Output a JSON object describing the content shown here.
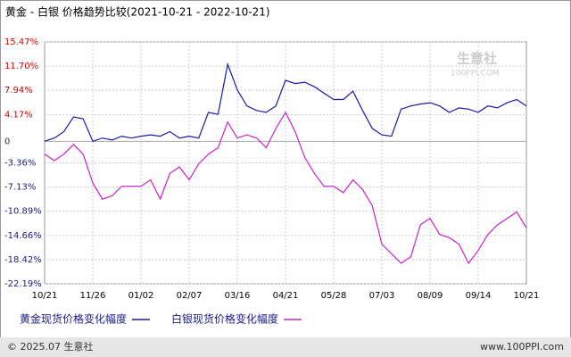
{
  "chart_data": {
    "type": "line",
    "title": "黄金 - 白银 价格趋势比较(2021-10-21 - 2022-10-21)",
    "watermark": [
      "生意社",
      "100PPI.COM"
    ],
    "footer_left": "© 2025.07 生意社",
    "footer_right": "www.100PPI.com",
    "categories": [
      "10/21",
      null,
      null,
      null,
      null,
      "11/26",
      null,
      null,
      null,
      null,
      "01/02",
      null,
      null,
      null,
      null,
      "02/07",
      null,
      null,
      null,
      null,
      "03/16",
      null,
      null,
      null,
      null,
      "04/21",
      null,
      null,
      null,
      null,
      "05/28",
      null,
      null,
      null,
      null,
      "07/03",
      null,
      null,
      null,
      null,
      "08/09",
      null,
      null,
      null,
      null,
      "09/14",
      null,
      null,
      null,
      null,
      "10/21"
    ],
    "series": [
      {
        "name": "黄金现货价格变化幅度",
        "color": "#1a1aa8",
        "values": [
          0,
          0.5,
          1.5,
          3.8,
          3.5,
          0,
          0.5,
          0.2,
          0.8,
          0.5,
          0.8,
          1,
          0.8,
          1.5,
          0.5,
          0.8,
          0.5,
          4.5,
          4.2,
          12,
          8,
          5.5,
          4.8,
          4.5,
          5.5,
          9.5,
          9,
          9.2,
          8.5,
          7.5,
          6.5,
          6.5,
          7.8,
          4.8,
          2,
          1,
          0.8,
          5,
          5.5,
          5.8,
          6,
          5.5,
          4.5,
          5.2,
          5,
          4.5,
          5.5,
          5.2,
          6,
          6.5,
          5.5
        ]
      },
      {
        "name": "白银现货价格变化幅度",
        "color": "#cc22cc",
        "values": [
          -2,
          -3,
          -2,
          -0.5,
          -2,
          -6.5,
          -9,
          -8.5,
          -7,
          -7,
          -7,
          -6,
          -9,
          -5,
          -4,
          -6,
          -3.5,
          -2,
          -1,
          3,
          0.5,
          1,
          0.5,
          -1,
          2,
          4.5,
          1.5,
          -2.5,
          -5,
          -7,
          -7,
          -8,
          -6,
          -7.5,
          -10,
          -16,
          -17.5,
          -19,
          -18,
          -13,
          -12,
          -14.5,
          -15,
          -16,
          -19,
          -17,
          -14.5,
          -13,
          -12,
          -11,
          -13.5
        ]
      }
    ],
    "ylim": [
      -22.19,
      15.47
    ],
    "yticks": [
      {
        "value": 15.47,
        "label": "15.47%"
      },
      {
        "value": 11.7,
        "label": "11.70%"
      },
      {
        "value": 7.94,
        "label": "7.94%"
      },
      {
        "value": 4.17,
        "label": "4.17%"
      },
      0,
      {
        "value": -3.36,
        "label": "-3.36%"
      },
      {
        "value": -7.13,
        "label": "-7.13%"
      },
      {
        "value": -10.89,
        "label": "-10.89%"
      },
      {
        "value": -14.66,
        "label": "-14.66%"
      },
      {
        "value": -18.42,
        "label": "-18.42%"
      },
      {
        "value": -22.19,
        "label": "-22.19%"
      }
    ],
    "grid": true
  }
}
